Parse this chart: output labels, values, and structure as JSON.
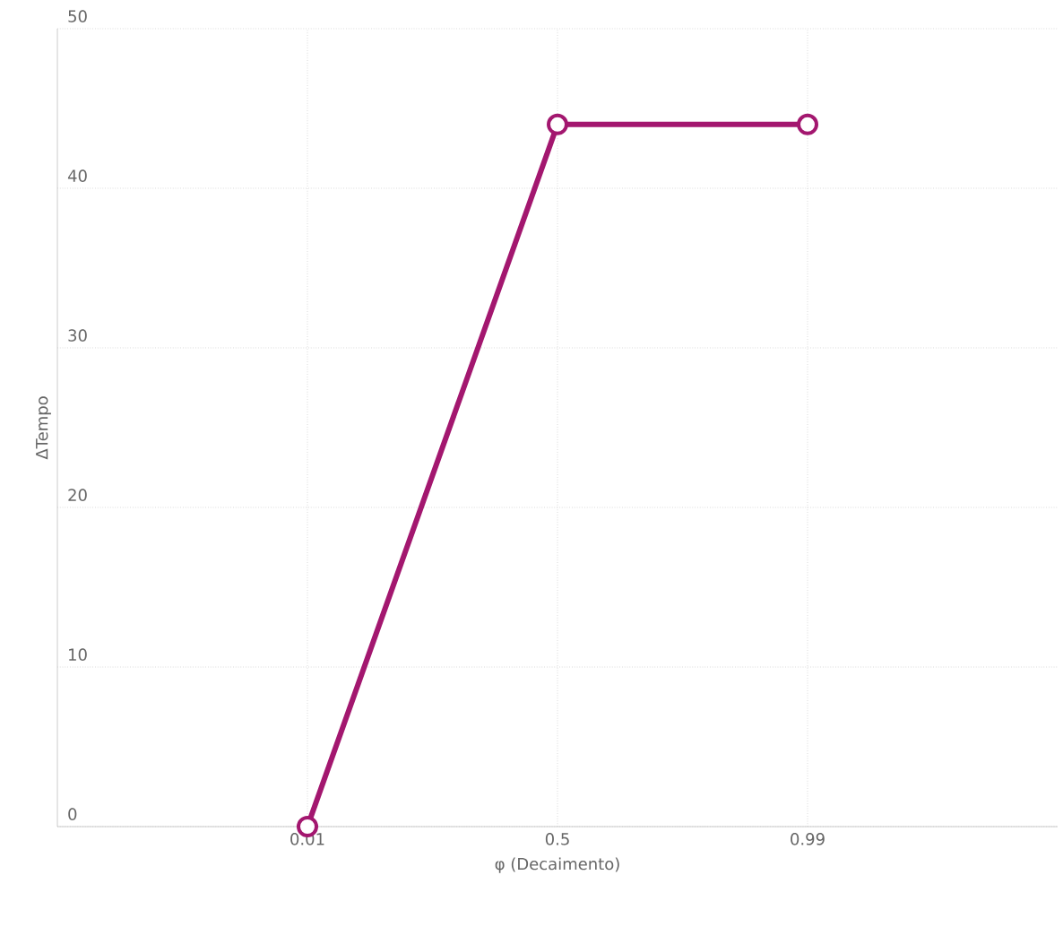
{
  "chart_data": {
    "type": "line",
    "xlabel": "φ (Decaimento)",
    "ylabel": "ΔTempo",
    "categories": [
      "0.01",
      "0.5",
      "0.99"
    ],
    "series": [
      {
        "color": "#a3176f",
        "values": [
          0,
          44,
          44
        ]
      }
    ],
    "ylim": [
      0,
      50
    ],
    "yticks": [
      0,
      10,
      20,
      30,
      40,
      50
    ],
    "grid": true,
    "marker": "circle",
    "line_style": "solid"
  }
}
